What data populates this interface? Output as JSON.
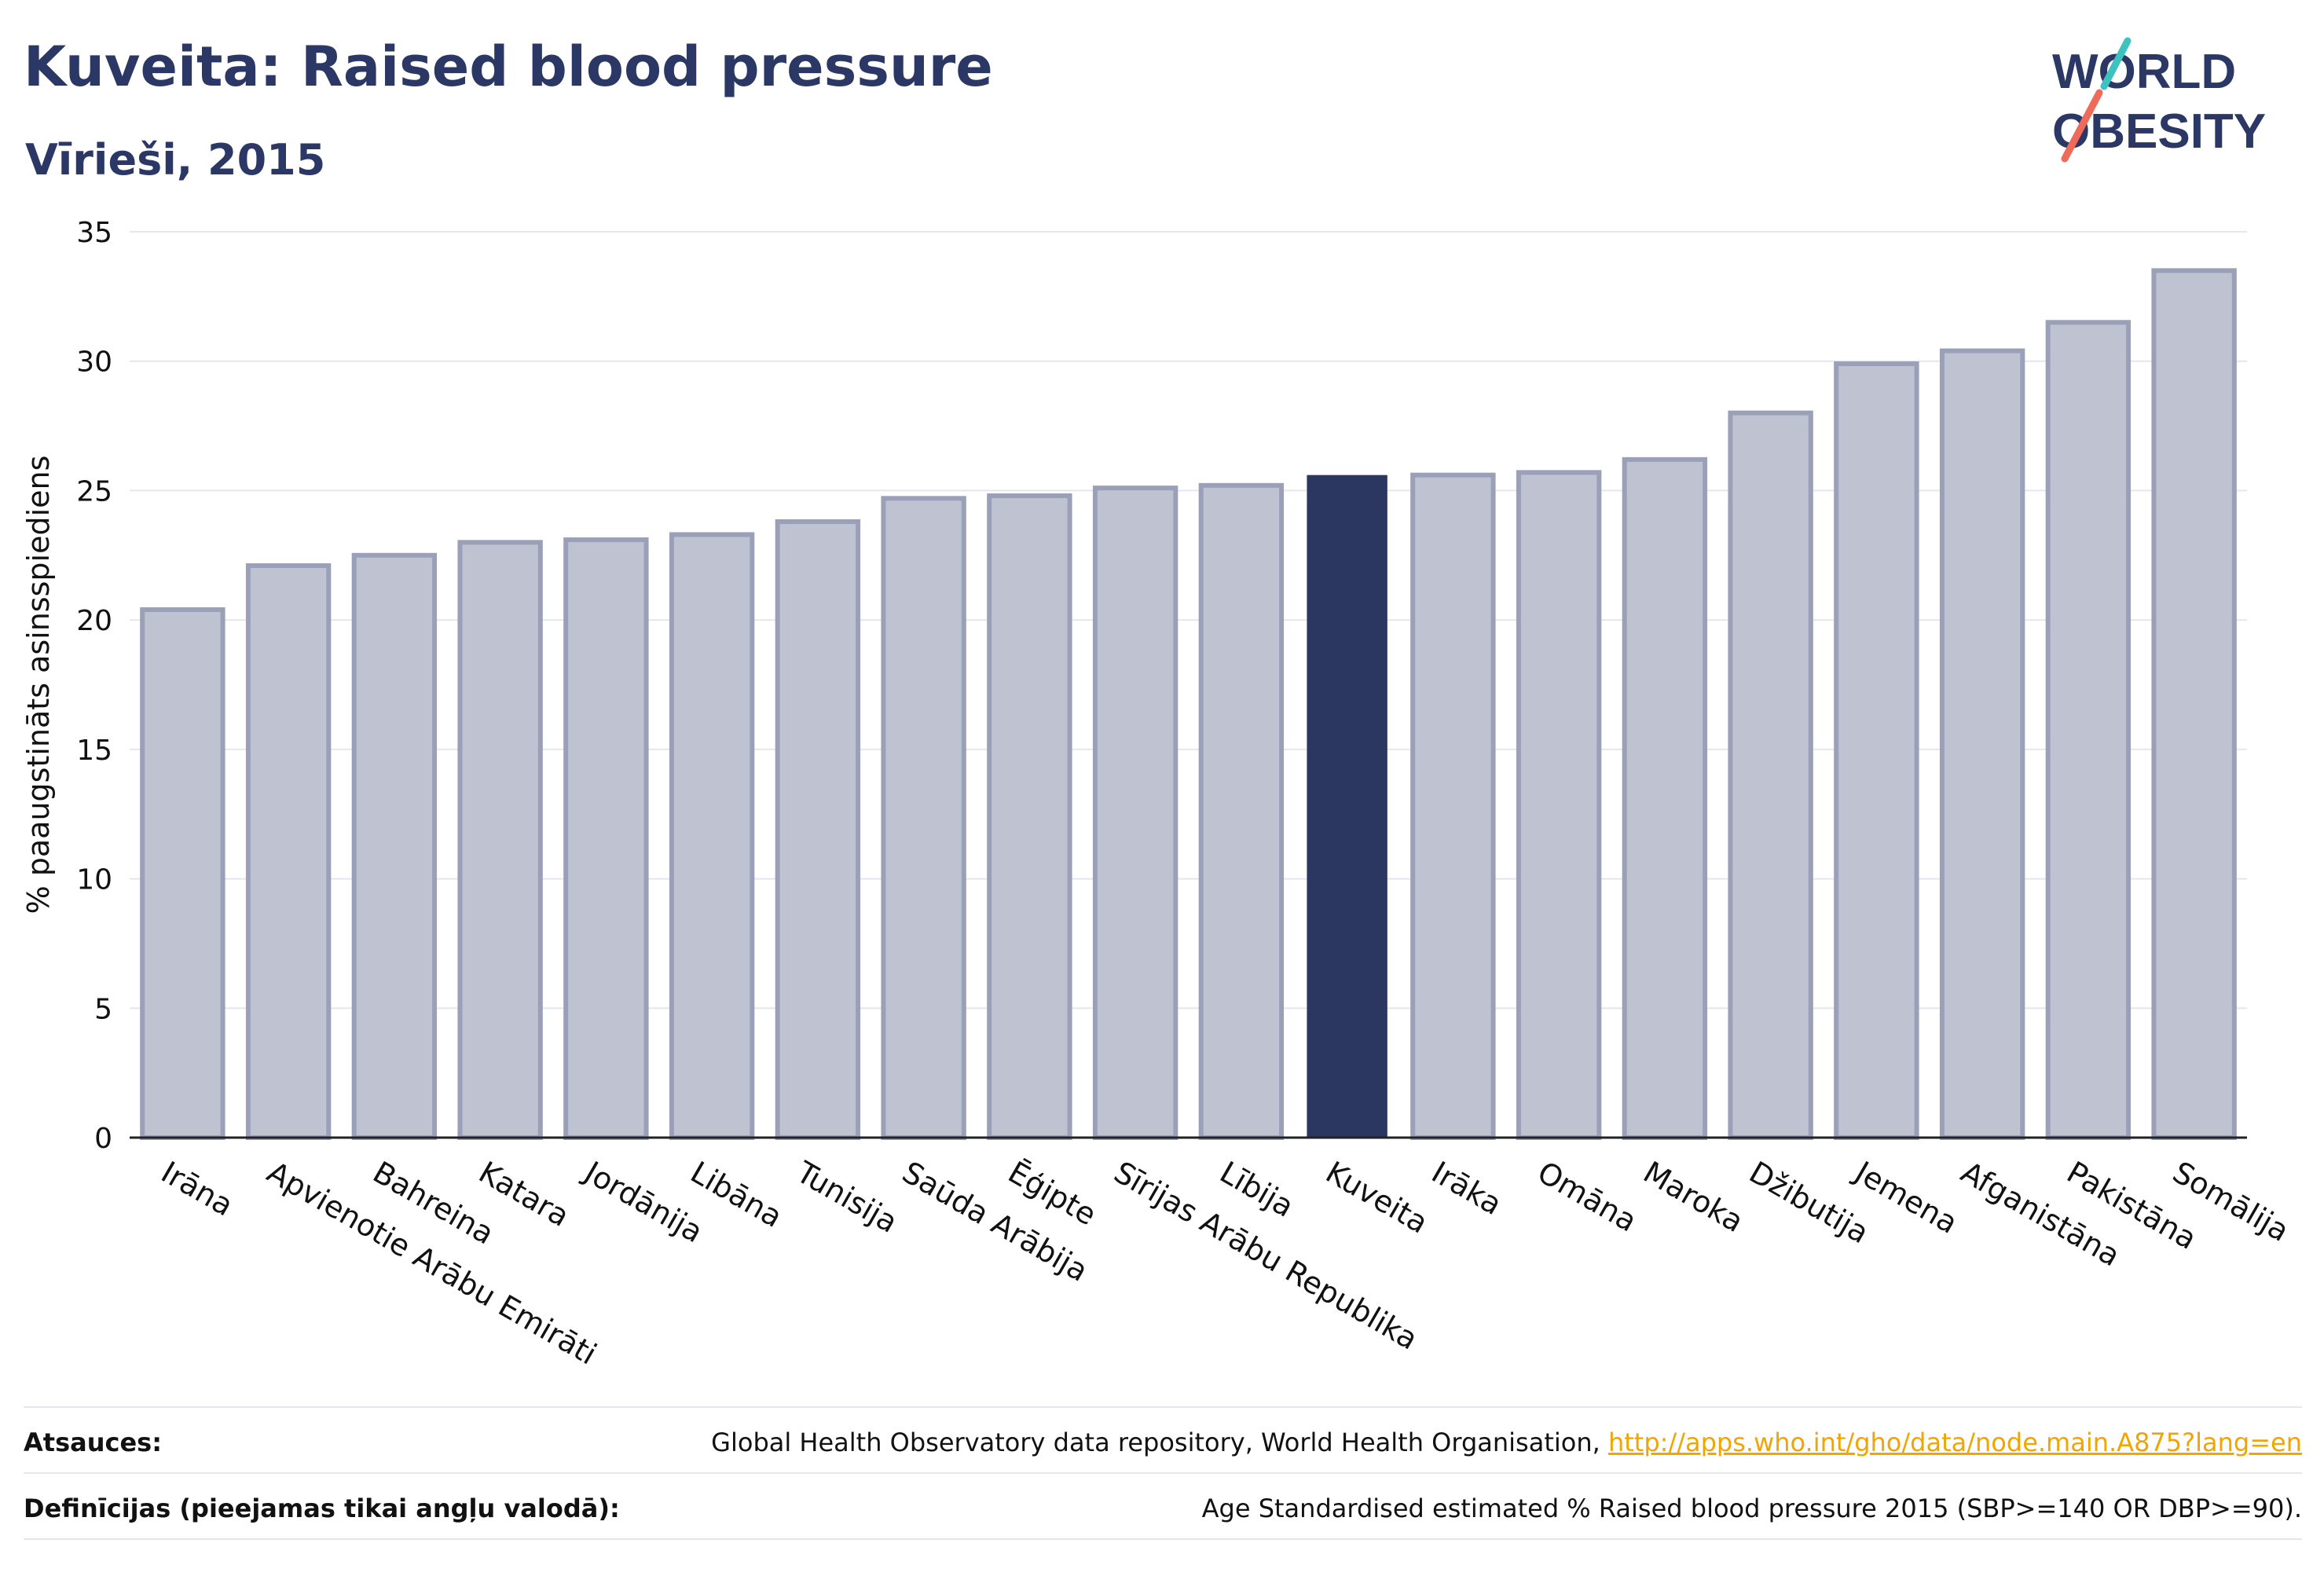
{
  "header": {
    "title": "Kuveita: Raised blood pressure",
    "subtitle": "Vīrieši, 2015"
  },
  "logo": {
    "line1": "WORLD",
    "line2": "OBESITY"
  },
  "colors": {
    "bar": "#bfc2d0",
    "bar_stroke": "#9aa0b8",
    "highlight": "#2b3661",
    "title": "#2b3866",
    "link": "#f0a500"
  },
  "chart_data": {
    "type": "bar",
    "ylabel": "% paaugstināts asinsspiediens",
    "ylim": [
      0,
      35
    ],
    "yticks": [
      0,
      5,
      10,
      15,
      20,
      25,
      30,
      35
    ],
    "grid": true,
    "highlight": "Kuveita",
    "categories": [
      "Irāna",
      "Apvienotie Arābu Emirāti",
      "Bahreina",
      "Katara",
      "Jordānija",
      "Libāna",
      "Tunisija",
      "Saūda Arābija",
      "Ēģipte",
      "Sīrijas Arābu Republika",
      "Lībija",
      "Kuveita",
      "Irāka",
      "Omāna",
      "Maroka",
      "Džibutija",
      "Jemena",
      "Afganistāna",
      "Pakistāna",
      "Somālija"
    ],
    "values": [
      20.4,
      22.1,
      22.5,
      23.0,
      23.1,
      23.3,
      23.8,
      24.7,
      24.8,
      25.1,
      25.2,
      25.6,
      25.6,
      25.7,
      26.2,
      28.0,
      29.9,
      30.4,
      31.5,
      33.5
    ]
  },
  "footer": {
    "sources_label": "Atsauces:",
    "sources_text": "Global Health Observatory data repository, World Health Organisation, ",
    "sources_link": "http://apps.who.int/gho/data/node.main.A875?lang=en",
    "definitions_label": "Definīcijas (pieejamas tikai angļu valodā):",
    "definitions_text": "Age Standardised estimated % Raised blood pressure 2015 (SBP>=140 OR DBP>=90)."
  }
}
